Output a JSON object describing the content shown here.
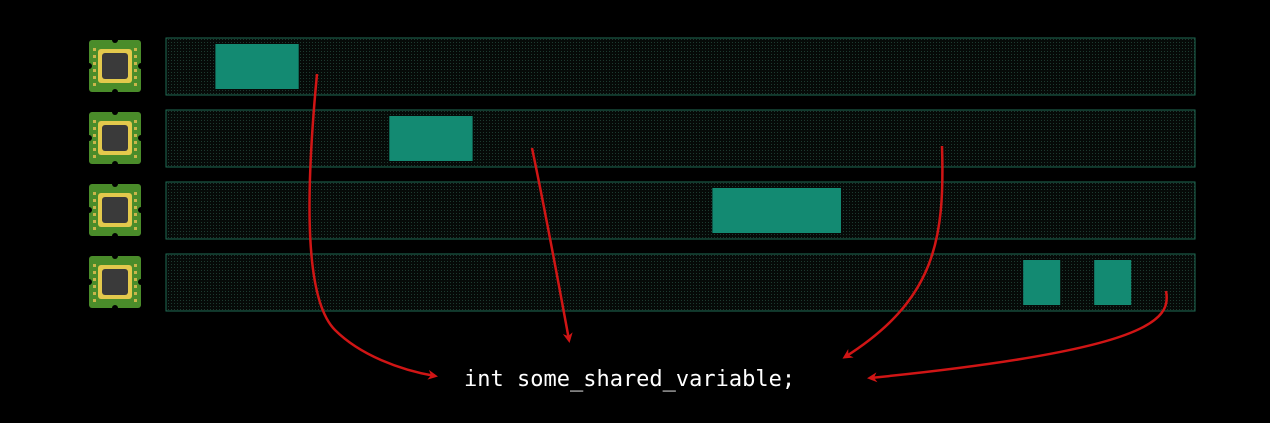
{
  "colors": {
    "background": "#000000",
    "lane_fill": "#0b1410",
    "lane_border": "#1f6b55",
    "task_block": "#138a72",
    "arrow": "#d01515",
    "code_text": "#ffffff",
    "chip_board": "#4a8c2a",
    "chip_frame": "#e3c94c",
    "chip_die": "#3a3a3a"
  },
  "icons": {
    "cpu": "cpu-chip-icon"
  },
  "cores": [
    {
      "tasks": [
        {
          "start": 0.048,
          "end": 0.129
        }
      ]
    },
    {
      "tasks": [
        {
          "start": 0.217,
          "end": 0.298
        }
      ]
    },
    {
      "tasks": [
        {
          "start": 0.531,
          "end": 0.656
        }
      ]
    },
    {
      "tasks": [
        {
          "start": 0.833,
          "end": 0.869
        },
        {
          "start": 0.902,
          "end": 0.938
        }
      ]
    }
  ],
  "shared_variable": {
    "code": "int some_shared_variable;"
  }
}
